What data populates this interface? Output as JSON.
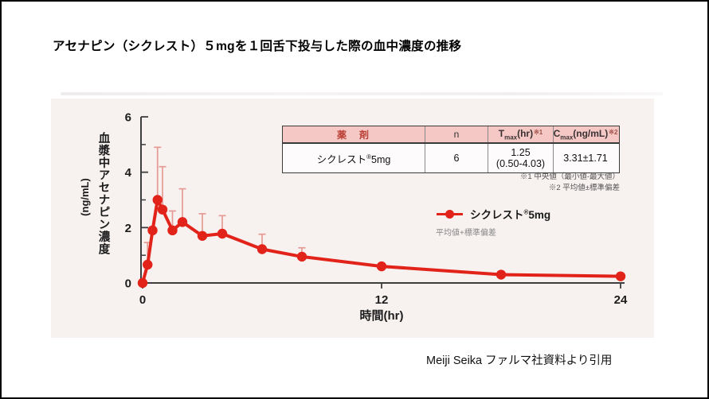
{
  "page": {
    "title": "アセナピン（シクレスト）５mgを１回舌下投与した際の血中濃度の推移",
    "source_caption": "Meiji Seika  ファルマ社資料より引用"
  },
  "table": {
    "headers": {
      "drug": "薬　剤",
      "n": "n",
      "tmax": {
        "base": "T",
        "sub": "max",
        "rest": "(hr)",
        "note": "※1"
      },
      "cmax": {
        "base": "C",
        "sub": "max",
        "rest": "(ng/mL)",
        "note": "※2"
      }
    },
    "row": {
      "drug_name": "シクレスト",
      "drug_reg": "®",
      "drug_dose": "5mg",
      "n": "6",
      "tmax_line1": "1.25",
      "tmax_line2": "(0.50-4.03)",
      "cmax": "3.31±1.71"
    },
    "footnotes": {
      "note1": "※1 中央値（最小値-最大値）",
      "note2": "※2 平均値±標準偏差"
    }
  },
  "legend": {
    "name": "シクレスト",
    "reg": "®",
    "dose": "5mg",
    "note": "平均値+標準偏差"
  },
  "chart_data": {
    "type": "line",
    "title": "",
    "xlabel": "時間(hr)",
    "ylabel": "血漿中アセナピン濃度",
    "ylabel_unit": "(ng/mL)",
    "x": [
      0,
      0.25,
      0.5,
      0.75,
      1,
      1.5,
      2,
      3,
      4,
      6,
      8,
      12,
      18,
      24
    ],
    "series": [
      {
        "name": "シクレスト®5mg",
        "values": [
          0,
          0.66,
          1.9,
          3.0,
          2.65,
          1.9,
          2.2,
          1.7,
          1.78,
          1.22,
          0.95,
          0.6,
          0.3,
          0.24
        ],
        "sd_upper": [
          0,
          0.8,
          0,
          1.9,
          1.55,
          0.7,
          1.2,
          0.8,
          0.65,
          0.54,
          0.32,
          0,
          0,
          0
        ]
      }
    ],
    "xlim": [
      0,
      24
    ],
    "ylim": [
      0,
      6
    ],
    "xticks": [
      0,
      12,
      24
    ],
    "yticks": [
      0,
      2,
      4,
      6
    ],
    "yminor": [
      1,
      3,
      5
    ],
    "grid": false,
    "legend_position": "right-middle",
    "error_bar_note": "平均値+標準偏差",
    "colors": {
      "line": "#e2231a",
      "error": "#e59b93",
      "axis": "#3e3e3e"
    }
  }
}
